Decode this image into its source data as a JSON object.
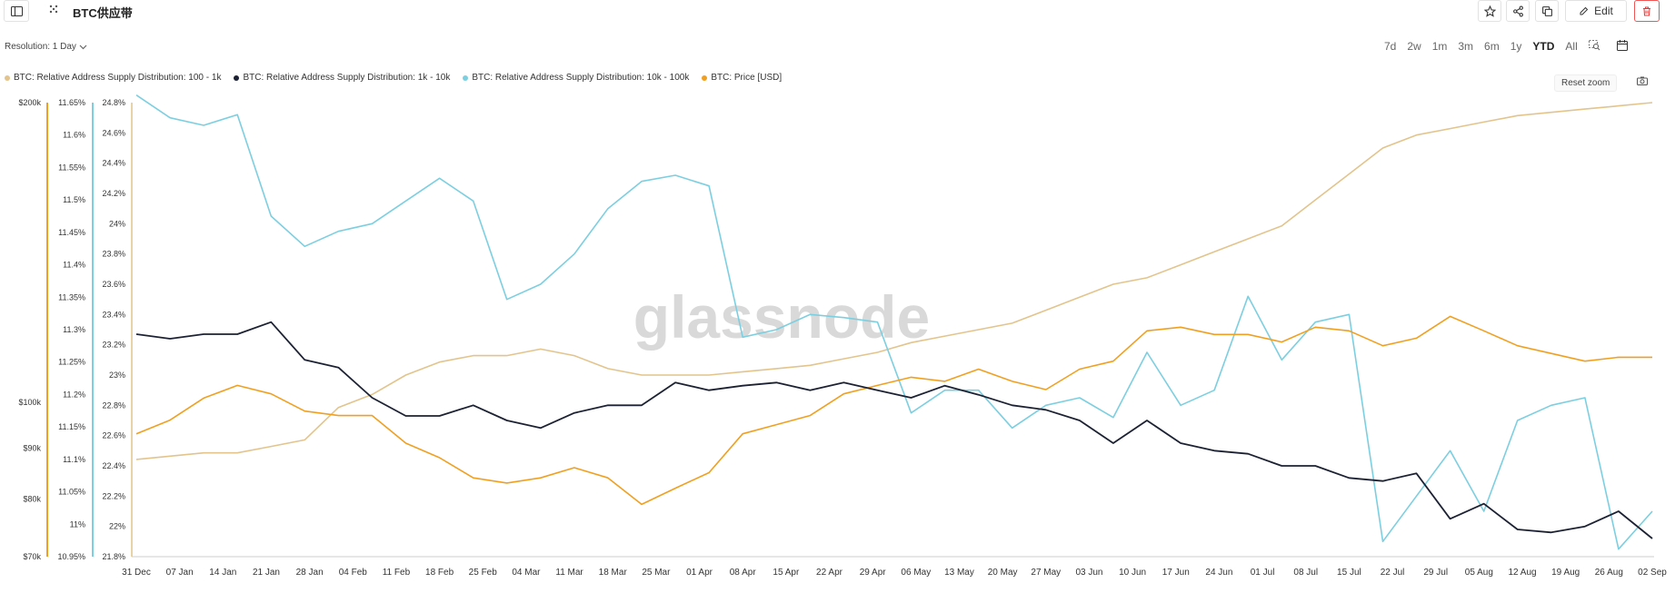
{
  "header": {
    "title": "BTC供应带",
    "edit_label": "Edit",
    "icons": [
      "sidebar-toggle-icon",
      "drag-handle-icon",
      "star-icon",
      "share-icon",
      "duplicate-icon",
      "edit-icon",
      "trash-icon"
    ]
  },
  "controls": {
    "resolution_label": "Resolution: 1 Day",
    "ranges": [
      "7d",
      "2w",
      "1m",
      "3m",
      "6m",
      "1y",
      "YTD",
      "All"
    ],
    "active_range": "YTD",
    "reset_zoom": "Reset zoom"
  },
  "watermark": "glassnode",
  "colors": {
    "s100_1k": "#e2c48c",
    "s1k_10k": "#1c2233",
    "s10k_100k": "#7ccfe0",
    "price": "#f0a020"
  },
  "chart_data": {
    "type": "line",
    "x_ticks": [
      "31 Dec",
      "07 Jan",
      "14 Jan",
      "21 Jan",
      "28 Jan",
      "04 Feb",
      "11 Feb",
      "18 Feb",
      "25 Feb",
      "04 Mar",
      "11 Mar",
      "18 Mar",
      "25 Mar",
      "01 Apr",
      "08 Apr",
      "15 Apr",
      "22 Apr",
      "29 Apr",
      "06 May",
      "13 May",
      "20 May",
      "27 May",
      "03 Jun",
      "10 Jun",
      "17 Jun",
      "24 Jun",
      "01 Jul",
      "08 Jul",
      "15 Jul",
      "22 Jul",
      "29 Jul",
      "05 Aug",
      "12 Aug",
      "19 Aug",
      "26 Aug",
      "02 Sep"
    ],
    "axes": {
      "price": {
        "ticks": [
          "$200k",
          "$100k",
          "$90k",
          "$80k",
          "$70k"
        ],
        "values": [
          200000,
          100000,
          90000,
          80000,
          70000
        ],
        "scale": "log"
      },
      "s100_1k": {
        "ticks": [
          "11.65%",
          "11.6%",
          "11.55%",
          "11.5%",
          "11.45%",
          "11.4%",
          "11.35%",
          "11.3%",
          "11.25%",
          "11.2%",
          "11.15%",
          "11.1%",
          "11.05%",
          "11%",
          "10.95%"
        ],
        "range": [
          10.95,
          11.65
        ]
      },
      "s10k_100k": {
        "ticks": [
          "24.8%",
          "24.6%",
          "24.4%",
          "24.2%",
          "24%",
          "23.8%",
          "23.6%",
          "23.4%",
          "23.2%",
          "23%",
          "22.8%",
          "22.6%",
          "22.4%",
          "22.2%",
          "22%",
          "21.8%"
        ],
        "range": [
          21.8,
          24.8
        ]
      }
    },
    "series": [
      {
        "name": "BTC: Relative Address Supply Distribution: 100 - 1k",
        "key": "s100_1k",
        "axis": "s100_1k",
        "values": [
          11.1,
          11.105,
          11.11,
          11.11,
          11.12,
          11.13,
          11.18,
          11.2,
          11.23,
          11.25,
          11.26,
          11.26,
          11.27,
          11.26,
          11.24,
          11.23,
          11.23,
          11.23,
          11.235,
          11.24,
          11.245,
          11.255,
          11.265,
          11.28,
          11.29,
          11.3,
          11.31,
          11.33,
          11.35,
          11.37,
          11.38,
          11.4,
          11.42,
          11.44,
          11.46,
          11.5,
          11.54,
          11.58,
          11.6,
          11.61,
          11.62,
          11.63,
          11.635,
          11.64,
          11.645,
          11.65
        ]
      },
      {
        "name": "BTC: Relative Address Supply Distribution: 1k - 10k",
        "key": "s1k_10k",
        "axis": "s10k_100k",
        "values": [
          23.27,
          23.24,
          23.27,
          23.27,
          23.35,
          23.1,
          23.05,
          22.85,
          22.73,
          22.73,
          22.8,
          22.7,
          22.65,
          22.75,
          22.8,
          22.8,
          22.95,
          22.9,
          22.93,
          22.95,
          22.9,
          22.95,
          22.9,
          22.85,
          22.93,
          22.87,
          22.8,
          22.77,
          22.7,
          22.55,
          22.7,
          22.55,
          22.5,
          22.48,
          22.4,
          22.4,
          22.32,
          22.3,
          22.35,
          22.05,
          22.15,
          21.98,
          21.96,
          22.0,
          22.1,
          21.92
        ]
      },
      {
        "name": "BTC: Relative Address Supply Distribution: 10k - 100k",
        "key": "s10k_100k",
        "axis": "s10k_100k",
        "values": [
          24.85,
          24.7,
          24.65,
          24.72,
          24.05,
          23.85,
          23.95,
          24.0,
          24.15,
          24.3,
          24.15,
          23.5,
          23.6,
          23.8,
          24.1,
          24.28,
          24.32,
          24.25,
          23.25,
          23.3,
          23.4,
          23.38,
          23.35,
          22.75,
          22.9,
          22.9,
          22.65,
          22.8,
          22.85,
          22.72,
          23.15,
          22.8,
          22.9,
          23.52,
          23.1,
          23.35,
          23.4,
          21.9,
          22.2,
          22.5,
          22.1,
          22.7,
          22.8,
          22.85,
          21.85,
          22.1
        ]
      },
      {
        "name": "BTC: Price [USD]",
        "key": "price",
        "axis": "price",
        "values": [
          93000,
          96000,
          101000,
          104000,
          102000,
          98000,
          97000,
          97000,
          91000,
          88000,
          84000,
          83000,
          84000,
          86000,
          84000,
          79000,
          82000,
          85000,
          93000,
          95000,
          97000,
          102000,
          104000,
          106000,
          105000,
          108000,
          105000,
          103000,
          108000,
          110000,
          118000,
          119000,
          117000,
          117000,
          115000,
          119000,
          118000,
          114000,
          116000,
          122000,
          118000,
          114000,
          112000,
          110000,
          111000,
          111000
        ]
      }
    ],
    "legend_position": "top-left",
    "grid": false
  }
}
